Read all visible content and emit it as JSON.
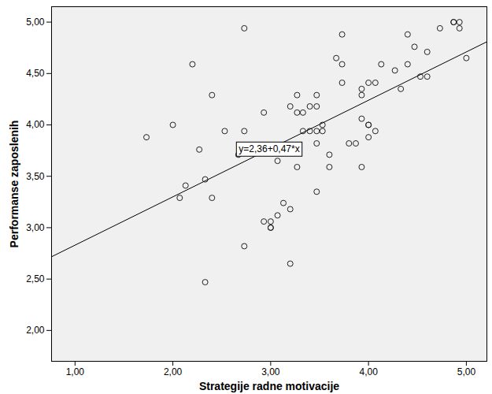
{
  "chart_data": {
    "type": "scatter",
    "x_label": "Strategije radne motivacije",
    "y_label": "Performanse zaposlenih",
    "marker": "circle_open",
    "color": "#222222",
    "xlim": [
      0.76,
      5.21
    ],
    "ylim": [
      1.7,
      5.15
    ],
    "xticks": [
      {
        "value": 1,
        "label": "1,00"
      },
      {
        "value": 2,
        "label": "2,00"
      },
      {
        "value": 3,
        "label": "3,00"
      },
      {
        "value": 4,
        "label": "4,00"
      },
      {
        "value": 5,
        "label": "5,00"
      }
    ],
    "yticks": [
      {
        "value": 2,
        "label": "2,00"
      },
      {
        "value": 2.5,
        "label": "2,50"
      },
      {
        "value": 3,
        "label": "3,00"
      },
      {
        "value": 3.5,
        "label": "3,50"
      },
      {
        "value": 4,
        "label": "4,00"
      },
      {
        "value": 4.5,
        "label": "4,50"
      },
      {
        "value": 5,
        "label": "5,00"
      }
    ],
    "fit": {
      "intercept": 2.36,
      "slope": 0.47,
      "label": "y=2,36+0,47*x"
    },
    "x": [
      1.73,
      2.0,
      2.07,
      2.13,
      2.2,
      2.27,
      2.33,
      2.33,
      2.4,
      2.4,
      2.53,
      2.67,
      2.73,
      2.73,
      2.73,
      2.93,
      2.93,
      3.0,
      3.0,
      3.0,
      3.07,
      3.07,
      3.13,
      3.2,
      3.2,
      3.2,
      3.27,
      3.27,
      3.27,
      3.33,
      3.33,
      3.4,
      3.4,
      3.47,
      3.47,
      3.47,
      3.47,
      3.47,
      3.53,
      3.53,
      3.6,
      3.6,
      3.67,
      3.73,
      3.73,
      3.73,
      3.8,
      3.87,
      3.93,
      3.93,
      3.93,
      3.93,
      4.0,
      4.0,
      4.0,
      4.0,
      4.07,
      4.07,
      4.13,
      4.27,
      4.33,
      4.4,
      4.4,
      4.47,
      4.53,
      4.6,
      4.6,
      4.73,
      4.87,
      4.87,
      4.93,
      4.93,
      5.0
    ],
    "values": [
      3.88,
      4.0,
      3.29,
      3.41,
      4.59,
      3.76,
      3.47,
      2.47,
      4.29,
      3.29,
      3.94,
      3.71,
      4.94,
      3.94,
      2.82,
      4.12,
      3.06,
      3.06,
      3.0,
      3.0,
      3.12,
      3.65,
      3.24,
      3.18,
      2.65,
      4.18,
      4.29,
      4.12,
      3.59,
      4.12,
      3.94,
      3.94,
      4.18,
      4.29,
      4.18,
      3.94,
      3.82,
      3.35,
      4.0,
      3.94,
      3.71,
      3.59,
      4.65,
      4.88,
      4.59,
      4.41,
      3.82,
      3.82,
      4.35,
      4.29,
      4.06,
      3.59,
      4.41,
      4.0,
      4.0,
      3.88,
      4.41,
      3.94,
      4.59,
      4.53,
      4.35,
      4.88,
      4.59,
      4.76,
      4.47,
      4.71,
      4.47,
      4.94,
      5.0,
      5.0,
      5.0,
      4.94,
      4.65
    ]
  }
}
